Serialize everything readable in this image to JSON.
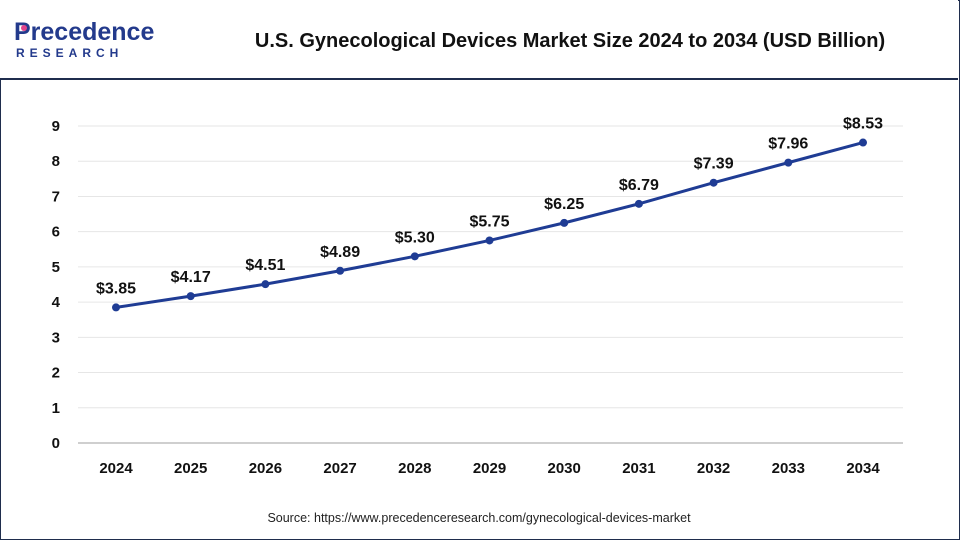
{
  "header": {
    "logo_main": "Precedence",
    "logo_sub": "RESEARCH",
    "title": "U.S. Gynecological Devices Market Size 2024 to 2034 (USD Billion)"
  },
  "colors": {
    "line": "#1f3c94",
    "border": "#1f2d4d",
    "logo_blue": "#233a8c",
    "logo_pink": "#e0448b"
  },
  "chart_data": {
    "type": "line",
    "title": "U.S. Gynecological Devices Market Size 2024 to 2034 (USD Billion)",
    "xlabel": "",
    "ylabel": "",
    "categories": [
      "2024",
      "2025",
      "2026",
      "2027",
      "2028",
      "2029",
      "2030",
      "2031",
      "2032",
      "2033",
      "2034"
    ],
    "series": [
      {
        "values": [
          3.85,
          4.17,
          4.51,
          4.89,
          5.3,
          5.75,
          6.25,
          6.79,
          7.39,
          7.96,
          8.53
        ],
        "labels": [
          "$3.85",
          "$4.17",
          "$4.51",
          "$4.89",
          "$5.30",
          "$5.75",
          "$6.25",
          "$6.79",
          "$7.39",
          "$7.96",
          "$8.53"
        ]
      }
    ],
    "ylim": [
      0,
      9
    ],
    "yticks": [
      "0",
      "1",
      "2",
      "3",
      "4",
      "5",
      "6",
      "7",
      "8",
      "9"
    ],
    "grid": true,
    "legend": "none"
  },
  "source": "Source: https://www.precedenceresearch.com/gynecological-devices-market"
}
